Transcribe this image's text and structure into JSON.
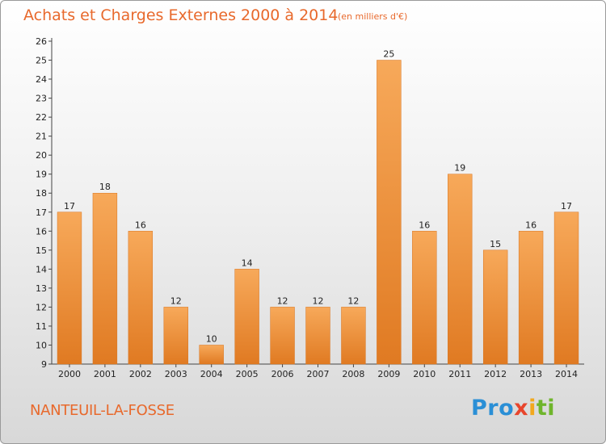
{
  "header": {
    "title": "Achats et Charges Externes 2000 à 2014",
    "unit": "(en milliers d'€)"
  },
  "footer": {
    "commune": "NANTEUIL-LA-FOSSE",
    "logo_parts": [
      "Pro",
      "x",
      "i",
      "ti"
    ]
  },
  "colors": {
    "title": "#e8692c",
    "bar_top": "#f7a95a",
    "bar_bottom": "#e07a22",
    "logo_blue": "#2a8fd6",
    "logo_yellow": "#f2a81d",
    "logo_red": "#e8452c",
    "logo_green": "#6fb52c"
  },
  "chart_data": {
    "type": "bar",
    "title": "Achats et Charges Externes 2000 à 2014",
    "subtitle": "(en milliers d'€)",
    "categories": [
      "2000",
      "2001",
      "2002",
      "2003",
      "2004",
      "2005",
      "2006",
      "2007",
      "2008",
      "2009",
      "2010",
      "2011",
      "2012",
      "2013",
      "2014"
    ],
    "values": [
      17,
      18,
      16,
      12,
      10,
      14,
      12,
      12,
      12,
      25,
      16,
      19,
      15,
      16,
      17
    ],
    "ylim": [
      9,
      26
    ],
    "yticks": [
      9,
      10,
      11,
      12,
      13,
      14,
      15,
      16,
      17,
      18,
      19,
      20,
      21,
      22,
      23,
      24,
      25,
      26
    ],
    "xlabel": "",
    "ylabel": "",
    "grid": false,
    "legend": "none"
  }
}
